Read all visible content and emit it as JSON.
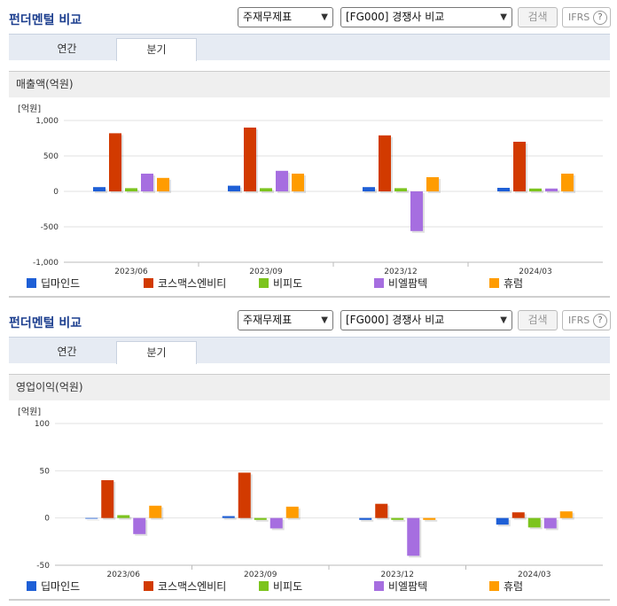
{
  "header": {
    "title": "펀더멘털 비교",
    "select1": "주재무제표",
    "select2": "[FG000] 경쟁사 비교",
    "search_button": "검색",
    "ifrs_label": "IFRS",
    "help_icon": "?"
  },
  "tabs": [
    "연간",
    "분기"
  ],
  "colors": {
    "딥마인드": "#1e5fd6",
    "코스맥스엔비티": "#d23a00",
    "비피도": "#7cc41e",
    "비엘팜텍": "#a66ee0",
    "휴럼": "#ff9c00"
  },
  "charts": [
    {
      "section_title": "매출액(억원)",
      "chart_data": {
        "type": "bar",
        "unit_label": "[억원]",
        "categories": [
          "2023/06",
          "2023/09",
          "2023/12",
          "2024/03"
        ],
        "ylim": [
          -1000,
          1000
        ],
        "yticks": [
          1000,
          500,
          0,
          -500,
          -1000
        ],
        "ytick_labels": [
          "1,000",
          "500",
          "0",
          "-500",
          "-1,000"
        ],
        "series": [
          {
            "name": "딥마인드",
            "values": [
              60,
              80,
              60,
              50
            ]
          },
          {
            "name": "코스맥스엔비티",
            "values": [
              820,
              900,
              790,
              700
            ]
          },
          {
            "name": "비피도",
            "values": [
              45,
              45,
              45,
              40
            ]
          },
          {
            "name": "비엘팜텍",
            "values": [
              250,
              290,
              -560,
              40
            ]
          },
          {
            "name": "휴럼",
            "values": [
              190,
              250,
              200,
              250
            ]
          }
        ]
      }
    },
    {
      "section_title": "영업이익(억원)",
      "chart_data": {
        "type": "bar",
        "unit_label": "[억원]",
        "categories": [
          "2023/06",
          "2023/09",
          "2023/12",
          "2024/03"
        ],
        "ylim": [
          -50,
          100
        ],
        "yticks": [
          100,
          50,
          0,
          -50
        ],
        "ytick_labels": [
          "100",
          "50",
          "0",
          "-50"
        ],
        "series": [
          {
            "name": "딥마인드",
            "values": [
              0,
              2,
              -2,
              -7
            ]
          },
          {
            "name": "코스맥스엔비티",
            "values": [
              40,
              48,
              15,
              6
            ]
          },
          {
            "name": "비피도",
            "values": [
              3,
              -2,
              -2,
              -10
            ]
          },
          {
            "name": "비엘팜텍",
            "values": [
              -17,
              -11,
              -40,
              -11
            ]
          },
          {
            "name": "휴럼",
            "values": [
              13,
              12,
              -2,
              7
            ]
          }
        ]
      }
    }
  ]
}
